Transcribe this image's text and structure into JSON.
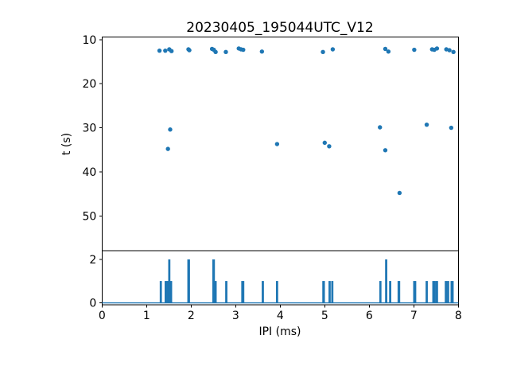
{
  "figure": {
    "background": "#ffffff",
    "accent_color": "#1f77b4",
    "axis_color": "#000000"
  },
  "chart_data": [
    {
      "type": "scatter",
      "title": "20230405_195044UTC_V12",
      "xlabel": "",
      "ylabel": "t (s)",
      "xlim": [
        0,
        8
      ],
      "ylim": [
        9.4,
        57.9
      ],
      "y_axis_inverted": true,
      "yticks": [
        10,
        20,
        30,
        40,
        50
      ],
      "grid": false,
      "legend": "none",
      "marker_color": "#1f77b4",
      "points": [
        [
          1.29,
          12.5
        ],
        [
          1.42,
          12.5
        ],
        [
          1.51,
          12.2
        ],
        [
          1.56,
          12.6
        ],
        [
          1.94,
          12.2
        ],
        [
          1.96,
          12.4
        ],
        [
          2.47,
          12.1
        ],
        [
          2.51,
          12.3
        ],
        [
          2.55,
          12.8
        ],
        [
          2.78,
          12.8
        ],
        [
          3.07,
          12.0
        ],
        [
          3.12,
          12.2
        ],
        [
          3.17,
          12.3
        ],
        [
          3.59,
          12.7
        ],
        [
          4.96,
          12.8
        ],
        [
          5.18,
          12.2
        ],
        [
          6.36,
          12.1
        ],
        [
          6.43,
          12.7
        ],
        [
          7.01,
          12.3
        ],
        [
          7.41,
          12.2
        ],
        [
          7.46,
          12.3
        ],
        [
          7.52,
          12.0
        ],
        [
          7.73,
          12.2
        ],
        [
          7.8,
          12.4
        ],
        [
          7.89,
          12.8
        ],
        [
          1.48,
          34.8
        ],
        [
          1.53,
          30.4
        ],
        [
          3.93,
          33.7
        ],
        [
          5.0,
          33.4
        ],
        [
          5.1,
          34.2
        ],
        [
          6.24,
          29.9
        ],
        [
          6.36,
          35.1
        ],
        [
          6.68,
          44.8
        ],
        [
          7.29,
          29.3
        ],
        [
          7.84,
          30.0
        ]
      ]
    },
    {
      "type": "bar",
      "title": "",
      "xlabel": "IPI (ms)",
      "ylabel": "",
      "xlim": [
        0,
        8
      ],
      "ylim": [
        -0.09,
        2.41
      ],
      "yticks": [
        0,
        2
      ],
      "xticks": [
        0,
        1,
        2,
        3,
        4,
        5,
        6,
        7,
        8
      ],
      "grid": false,
      "bar_color": "#1f77b4",
      "baseline_y": 0,
      "bars": [
        [
          1.3,
          0.04,
          1
        ],
        [
          1.41,
          0.08,
          1
        ],
        [
          1.49,
          0.04,
          2
        ],
        [
          1.53,
          0.03,
          1
        ],
        [
          1.92,
          0.05,
          2
        ],
        [
          2.48,
          0.05,
          2
        ],
        [
          2.53,
          0.03,
          1
        ],
        [
          2.77,
          0.04,
          1
        ],
        [
          3.13,
          0.06,
          1
        ],
        [
          3.59,
          0.04,
          1
        ],
        [
          3.91,
          0.04,
          1
        ],
        [
          4.95,
          0.05,
          1
        ],
        [
          5.09,
          0.04,
          1
        ],
        [
          5.15,
          0.04,
          1
        ],
        [
          6.23,
          0.04,
          1
        ],
        [
          6.36,
          0.04,
          2
        ],
        [
          6.45,
          0.04,
          1
        ],
        [
          6.64,
          0.05,
          1
        ],
        [
          6.99,
          0.06,
          1
        ],
        [
          7.27,
          0.04,
          1
        ],
        [
          7.42,
          0.06,
          1
        ],
        [
          7.49,
          0.05,
          1
        ],
        [
          7.7,
          0.04,
          1
        ],
        [
          7.75,
          0.04,
          1
        ],
        [
          7.83,
          0.06,
          1
        ]
      ]
    }
  ]
}
